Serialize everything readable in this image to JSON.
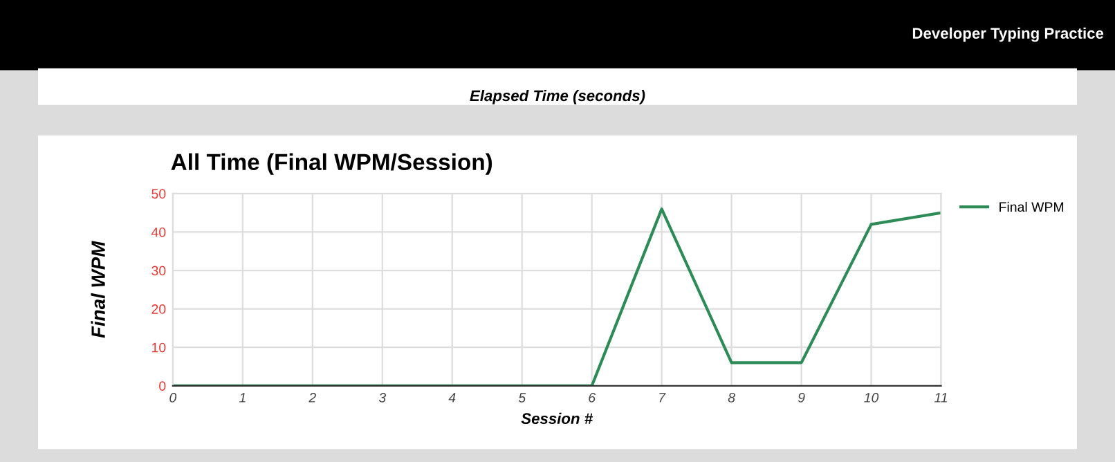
{
  "chart_data": {
    "type": "line",
    "title": "All Time (Final WPM/Session)",
    "xlabel": "Session #",
    "ylabel": "Final WPM",
    "annotations": [
      "Developer Typing Practice",
      "Elapsed Time (seconds)"
    ],
    "x": [
      0,
      1,
      2,
      3,
      4,
      5,
      6,
      7,
      8,
      9,
      10,
      11
    ],
    "series": [
      {
        "name": "Final WPM",
        "color": "#2e8b57",
        "values": [
          0,
          0,
          0,
          0,
          0,
          0,
          0,
          46,
          6,
          6,
          42,
          45
        ]
      }
    ],
    "xlim": [
      0,
      11
    ],
    "xticks": [
      0,
      1,
      2,
      3,
      4,
      5,
      6,
      7,
      8,
      9,
      10,
      11
    ],
    "ylim": [
      0,
      50
    ],
    "yticks": [
      0,
      10,
      20,
      30,
      40,
      50
    ],
    "grid": true,
    "legend": "top right",
    "marker": "none",
    "line_style": "solid"
  }
}
